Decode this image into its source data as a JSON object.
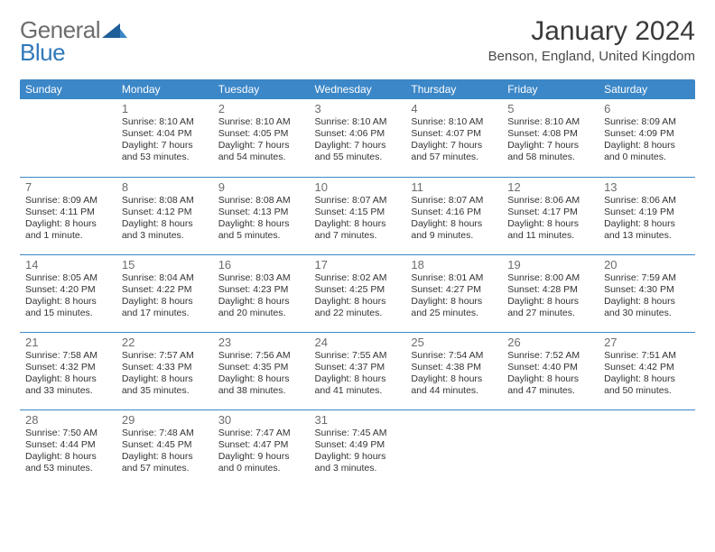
{
  "brand": {
    "general": "General",
    "blue": "Blue",
    "tri_color": "#1f5f99"
  },
  "title": "January 2024",
  "location": "Benson, England, United Kingdom",
  "colors": {
    "header_bg": "#3b87c8",
    "header_text": "#ffffff",
    "rule": "#3b87c8",
    "daynum": "#6d6d6d",
    "body_text": "#333333",
    "background": "#ffffff"
  },
  "weekdays": [
    "Sunday",
    "Monday",
    "Tuesday",
    "Wednesday",
    "Thursday",
    "Friday",
    "Saturday"
  ],
  "weeks": [
    [
      null,
      {
        "n": "1",
        "sunrise": "8:10 AM",
        "sunset": "4:04 PM",
        "daylight": "7 hours and 53 minutes."
      },
      {
        "n": "2",
        "sunrise": "8:10 AM",
        "sunset": "4:05 PM",
        "daylight": "7 hours and 54 minutes."
      },
      {
        "n": "3",
        "sunrise": "8:10 AM",
        "sunset": "4:06 PM",
        "daylight": "7 hours and 55 minutes."
      },
      {
        "n": "4",
        "sunrise": "8:10 AM",
        "sunset": "4:07 PM",
        "daylight": "7 hours and 57 minutes."
      },
      {
        "n": "5",
        "sunrise": "8:10 AM",
        "sunset": "4:08 PM",
        "daylight": "7 hours and 58 minutes."
      },
      {
        "n": "6",
        "sunrise": "8:09 AM",
        "sunset": "4:09 PM",
        "daylight": "8 hours and 0 minutes."
      }
    ],
    [
      {
        "n": "7",
        "sunrise": "8:09 AM",
        "sunset": "4:11 PM",
        "daylight": "8 hours and 1 minute."
      },
      {
        "n": "8",
        "sunrise": "8:08 AM",
        "sunset": "4:12 PM",
        "daylight": "8 hours and 3 minutes."
      },
      {
        "n": "9",
        "sunrise": "8:08 AM",
        "sunset": "4:13 PM",
        "daylight": "8 hours and 5 minutes."
      },
      {
        "n": "10",
        "sunrise": "8:07 AM",
        "sunset": "4:15 PM",
        "daylight": "8 hours and 7 minutes."
      },
      {
        "n": "11",
        "sunrise": "8:07 AM",
        "sunset": "4:16 PM",
        "daylight": "8 hours and 9 minutes."
      },
      {
        "n": "12",
        "sunrise": "8:06 AM",
        "sunset": "4:17 PM",
        "daylight": "8 hours and 11 minutes."
      },
      {
        "n": "13",
        "sunrise": "8:06 AM",
        "sunset": "4:19 PM",
        "daylight": "8 hours and 13 minutes."
      }
    ],
    [
      {
        "n": "14",
        "sunrise": "8:05 AM",
        "sunset": "4:20 PM",
        "daylight": "8 hours and 15 minutes."
      },
      {
        "n": "15",
        "sunrise": "8:04 AM",
        "sunset": "4:22 PM",
        "daylight": "8 hours and 17 minutes."
      },
      {
        "n": "16",
        "sunrise": "8:03 AM",
        "sunset": "4:23 PM",
        "daylight": "8 hours and 20 minutes."
      },
      {
        "n": "17",
        "sunrise": "8:02 AM",
        "sunset": "4:25 PM",
        "daylight": "8 hours and 22 minutes."
      },
      {
        "n": "18",
        "sunrise": "8:01 AM",
        "sunset": "4:27 PM",
        "daylight": "8 hours and 25 minutes."
      },
      {
        "n": "19",
        "sunrise": "8:00 AM",
        "sunset": "4:28 PM",
        "daylight": "8 hours and 27 minutes."
      },
      {
        "n": "20",
        "sunrise": "7:59 AM",
        "sunset": "4:30 PM",
        "daylight": "8 hours and 30 minutes."
      }
    ],
    [
      {
        "n": "21",
        "sunrise": "7:58 AM",
        "sunset": "4:32 PM",
        "daylight": "8 hours and 33 minutes."
      },
      {
        "n": "22",
        "sunrise": "7:57 AM",
        "sunset": "4:33 PM",
        "daylight": "8 hours and 35 minutes."
      },
      {
        "n": "23",
        "sunrise": "7:56 AM",
        "sunset": "4:35 PM",
        "daylight": "8 hours and 38 minutes."
      },
      {
        "n": "24",
        "sunrise": "7:55 AM",
        "sunset": "4:37 PM",
        "daylight": "8 hours and 41 minutes."
      },
      {
        "n": "25",
        "sunrise": "7:54 AM",
        "sunset": "4:38 PM",
        "daylight": "8 hours and 44 minutes."
      },
      {
        "n": "26",
        "sunrise": "7:52 AM",
        "sunset": "4:40 PM",
        "daylight": "8 hours and 47 minutes."
      },
      {
        "n": "27",
        "sunrise": "7:51 AM",
        "sunset": "4:42 PM",
        "daylight": "8 hours and 50 minutes."
      }
    ],
    [
      {
        "n": "28",
        "sunrise": "7:50 AM",
        "sunset": "4:44 PM",
        "daylight": "8 hours and 53 minutes."
      },
      {
        "n": "29",
        "sunrise": "7:48 AM",
        "sunset": "4:45 PM",
        "daylight": "8 hours and 57 minutes."
      },
      {
        "n": "30",
        "sunrise": "7:47 AM",
        "sunset": "4:47 PM",
        "daylight": "9 hours and 0 minutes."
      },
      {
        "n": "31",
        "sunrise": "7:45 AM",
        "sunset": "4:49 PM",
        "daylight": "9 hours and 3 minutes."
      },
      null,
      null,
      null
    ]
  ]
}
